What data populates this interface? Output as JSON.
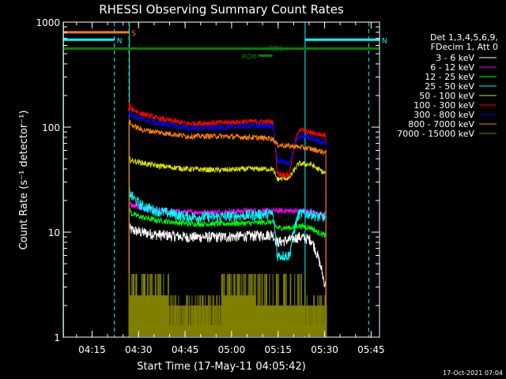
{
  "chart_data": {
    "type": "line",
    "title": "RHESSI Observing Summary Count Rates",
    "xlabel": "Start Time (17-May-11 04:05:42)",
    "ylabel": "Count Rate (s⁻¹ detector⁻¹)",
    "x_units": "minutes after 04:05:42 UT",
    "xlim": [
      0,
      102
    ],
    "ylim": [
      1,
      1000
    ],
    "yscale": "log",
    "grid": false,
    "x_ticks": [
      {
        "t": 9.3,
        "label": "04:15"
      },
      {
        "t": 24.3,
        "label": "04:30"
      },
      {
        "t": 39.3,
        "label": "04:45"
      },
      {
        "t": 54.3,
        "label": "05:00"
      },
      {
        "t": 69.3,
        "label": "05:15"
      },
      {
        "t": 84.3,
        "label": "05:30"
      },
      {
        "t": 99.3,
        "label": "05:45"
      }
    ],
    "y_ticks": [
      {
        "v": 1,
        "label": "1"
      },
      {
        "v": 10,
        "label": "10"
      },
      {
        "v": 100,
        "label": "100"
      },
      {
        "v": 1000,
        "label": "1000"
      }
    ],
    "legend": {
      "placement": "right",
      "header": [
        "Det 1,3,4,5,6,9,",
        "FDecim 1, Att 0"
      ]
    },
    "series": [
      {
        "name": "3 - 6 keV",
        "color": "#ffffff",
        "t": [
          21.2,
          22,
          25,
          30,
          40,
          50,
          60,
          67.5,
          69,
          73,
          76,
          80,
          82,
          84,
          84.8
        ],
        "values": [
          11,
          10.5,
          10,
          9.5,
          9,
          9,
          9.2,
          9.5,
          8,
          8.5,
          9,
          8.5,
          6,
          3.5,
          3
        ]
      },
      {
        "name": "6 - 12 keV",
        "color": "#ff00ff",
        "t": [
          21.2,
          22,
          25,
          30,
          40,
          50,
          60,
          67.5,
          69,
          73,
          76,
          80,
          82,
          84,
          84.8
        ],
        "values": [
          19,
          18,
          17,
          16,
          15.5,
          15.5,
          16,
          16,
          16,
          16,
          16,
          15.5,
          15,
          15,
          15
        ]
      },
      {
        "name": "12 - 25 keV",
        "color": "#00ff00",
        "t": [
          21.2,
          22,
          25,
          30,
          40,
          50,
          60,
          67.5,
          69,
          73,
          76,
          80,
          82,
          84,
          84.8
        ],
        "values": [
          17,
          15,
          14,
          13,
          12,
          12,
          12.2,
          12.5,
          11,
          11,
          11.5,
          11,
          10,
          9.5,
          9
        ]
      },
      {
        "name": "25 - 50 keV",
        "color": "#00ffff",
        "t": [
          21.2,
          22,
          25,
          30,
          40,
          50,
          60,
          67.5,
          69,
          73,
          76,
          80,
          82,
          84,
          84.8
        ],
        "values": [
          25,
          22,
          18,
          16,
          14,
          14,
          14.5,
          15,
          6,
          6,
          15,
          15,
          14,
          14,
          13.5
        ]
      },
      {
        "name": "50 - 100 keV",
        "color": "#e0e000",
        "t": [
          21.2,
          22,
          25,
          30,
          40,
          50,
          60,
          67.5,
          69,
          73,
          76,
          80,
          82,
          84,
          84.8
        ],
        "values": [
          50,
          48,
          46,
          43,
          40,
          39,
          40,
          40,
          32,
          33,
          45,
          44,
          40,
          37,
          36
        ]
      },
      {
        "name": "100 - 300 keV",
        "color": "#ff0000",
        "t": [
          21.2,
          22,
          25,
          30,
          40,
          50,
          60,
          67.5,
          69,
          73,
          76,
          80,
          82,
          84,
          84.8
        ],
        "values": [
          165,
          150,
          135,
          122,
          108,
          110,
          113,
          112,
          36,
          35,
          95,
          88,
          86,
          84,
          85
        ]
      },
      {
        "name": "300 - 800 keV",
        "color": "#0000ff",
        "t": [
          21.2,
          22,
          25,
          30,
          40,
          50,
          60,
          67.5,
          69,
          73,
          76,
          80,
          82,
          84,
          84.8
        ],
        "values": [
          145,
          130,
          120,
          110,
          98,
          99,
          103,
          102,
          48,
          45,
          82,
          78,
          75,
          72,
          72
        ]
      },
      {
        "name": "800 - 7000 keV",
        "color": "#ff7f00",
        "t": [
          21.2,
          22,
          25,
          30,
          40,
          50,
          60,
          67.5,
          69,
          73,
          76,
          80,
          82,
          84,
          84.8
        ],
        "values": [
          115,
          105,
          95,
          90,
          82,
          82,
          80,
          78,
          68,
          66,
          65,
          62,
          60,
          58,
          57
        ]
      },
      {
        "name": "7000 - 15000 keV",
        "color": "#808000",
        "t": [
          21.2,
          85
        ],
        "values": [
          2.5,
          2.5
        ]
      }
    ],
    "state_bars": [
      {
        "label": "S",
        "color": "#ff7f00",
        "t_start": 0,
        "t_end": 21.2,
        "level": 800
      },
      {
        "label": "N",
        "color": "#00ffff",
        "t_start": 0,
        "t_end": 16.5,
        "level": 680
      },
      {
        "label": "N",
        "color": "#00ffff",
        "t_start": 78,
        "t_end": 102,
        "level": 680
      },
      {
        "label": "",
        "color": "#008000",
        "t_start": 0,
        "t_end": 102,
        "level": 560
      },
      {
        "label": "RD6",
        "color": "#008000",
        "t_start": 63,
        "t_end": 67.5,
        "level": 480
      }
    ],
    "markers": [
      {
        "label": "RD6",
        "t": 67.5,
        "level": 570
      }
    ],
    "vertical_lines": [
      {
        "t": 0.1,
        "color": "#00ffff",
        "style": "solid"
      },
      {
        "t": 16.5,
        "color": "#00ffff",
        "style": "dashed"
      },
      {
        "t": 21.2,
        "color": "#ff7f00",
        "style": "dashed"
      },
      {
        "t": 21.3,
        "color": "#00ffff",
        "style": "solid"
      },
      {
        "t": 78,
        "color": "#00ffff",
        "style": "solid"
      },
      {
        "t": 98.5,
        "color": "#00ffff",
        "style": "dashed"
      }
    ],
    "footer": "17-Oct-2021 07:04"
  }
}
